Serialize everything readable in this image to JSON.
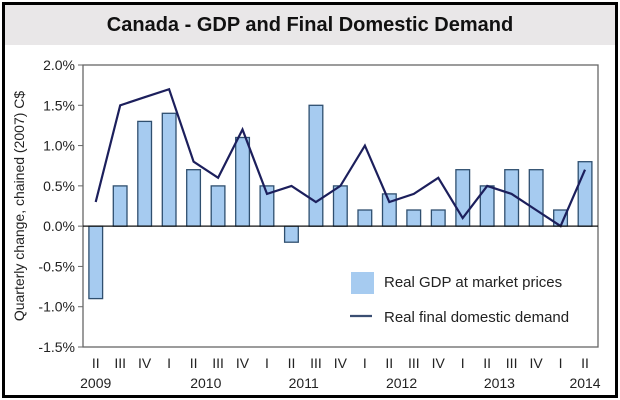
{
  "chart_data": {
    "type": "bar",
    "title": "Canada - GDP and Final Domestic Demand",
    "xlabel": "",
    "ylabel": "Quarterly change, chained (2007) C$",
    "ylim": [
      -1.5,
      2.0
    ],
    "yticks": [
      2.0,
      1.5,
      1.0,
      0.5,
      0.0,
      -0.5,
      -1.0,
      -1.5
    ],
    "ytick_labels": [
      "2.0%",
      "1.5%",
      "1.0%",
      "0.5%",
      "0.0%",
      "-0.5%",
      "-1.0%",
      "-1.5%"
    ],
    "categories": [
      "II",
      "III",
      "IV",
      "I",
      "II",
      "III",
      "IV",
      "I",
      "II",
      "III",
      "IV",
      "I",
      "II",
      "III",
      "IV",
      "I",
      "II",
      "III",
      "IV",
      "I",
      "II"
    ],
    "year_labels": [
      {
        "label": "2009",
        "index": 0
      },
      {
        "label": "2010",
        "index": 4.5
      },
      {
        "label": "2011",
        "index": 8.5
      },
      {
        "label": "2012",
        "index": 12.5
      },
      {
        "label": "2013",
        "index": 16.5
      },
      {
        "label": "2014",
        "index": 20
      }
    ],
    "series": [
      {
        "name": "Real GDP at market prices",
        "kind": "bar",
        "color": "#a6cbf0",
        "values": [
          -0.9,
          0.5,
          1.3,
          1.4,
          0.7,
          0.5,
          1.1,
          0.5,
          -0.2,
          1.5,
          0.5,
          0.2,
          0.4,
          0.2,
          0.2,
          0.7,
          0.5,
          0.7,
          0.7,
          0.2,
          0.8
        ]
      },
      {
        "name": "Real final domestic demand",
        "kind": "line",
        "color": "#1c1f5c",
        "values": [
          0.3,
          1.5,
          1.6,
          1.7,
          0.8,
          0.6,
          1.2,
          0.4,
          0.5,
          0.3,
          0.5,
          1.0,
          0.3,
          0.4,
          0.6,
          0.1,
          0.5,
          0.4,
          0.2,
          0.0,
          0.7
        ]
      }
    ],
    "grid": false,
    "legend_position": "bottom-right"
  }
}
